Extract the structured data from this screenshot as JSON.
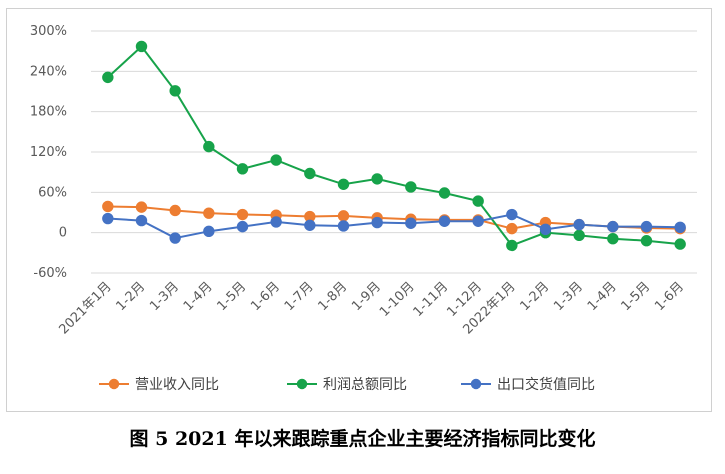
{
  "caption": "图 5   2021 年以来跟踪重点企业主要经济指标同比变化",
  "chart_data": {
    "type": "line",
    "title": "",
    "xlabel": "",
    "ylabel": "",
    "ylim": [
      -60,
      300
    ],
    "yticks": [
      -60,
      0,
      60,
      120,
      180,
      240,
      300
    ],
    "ytick_labels": [
      "-60%",
      "0",
      "60%",
      "120%",
      "180%",
      "240%",
      "300%"
    ],
    "grid": "horizontal",
    "legend_position": "bottom",
    "categories": [
      "2021年1月",
      "1-2月",
      "1-3月",
      "1-4月",
      "1-5月",
      "1-6月",
      "1-7月",
      "1-8月",
      "1-9月",
      "1-10月",
      "1-11月",
      "1-12月",
      "2022年1月",
      "1-2月",
      "1-3月",
      "1-4月",
      "1-5月",
      "1-6月"
    ],
    "series": [
      {
        "name": "营业收入同比",
        "color": "#ED7D31",
        "values": [
          39,
          38,
          33,
          29,
          27,
          26,
          24,
          25,
          22,
          20,
          19,
          19,
          6,
          15,
          12,
          9,
          7,
          6
        ]
      },
      {
        "name": "利润总额同比",
        "color": "#17A34A",
        "values": [
          231,
          277,
          211,
          128,
          95,
          108,
          88,
          72,
          80,
          68,
          59,
          47,
          -19,
          0,
          -4,
          -9,
          -12,
          -17
        ]
      },
      {
        "name": "出口交货值同比",
        "color": "#4472C4",
        "values": [
          21,
          18,
          -8,
          2,
          9,
          16,
          11,
          10,
          15,
          14,
          17,
          17,
          27,
          5,
          12,
          9,
          9,
          8
        ]
      }
    ]
  }
}
